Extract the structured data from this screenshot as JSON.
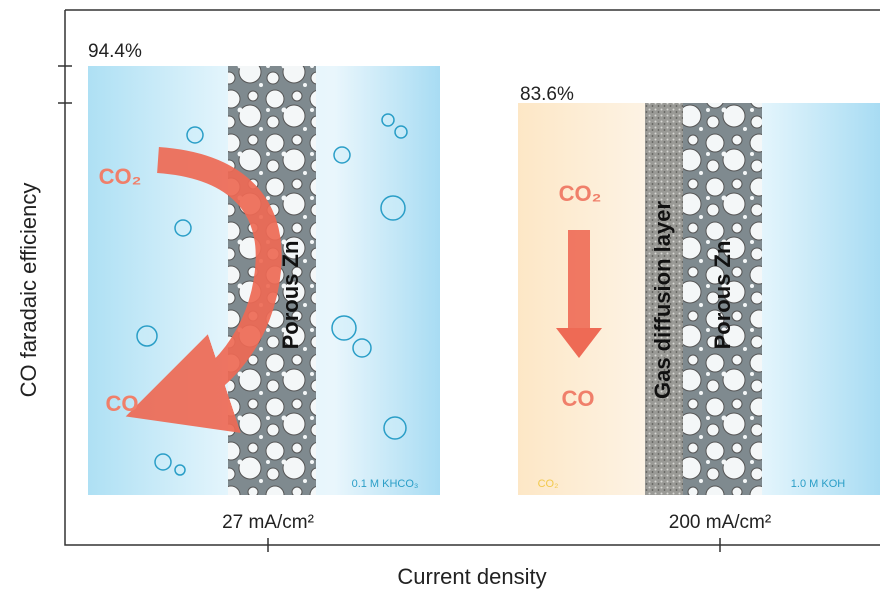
{
  "axes": {
    "y_label": "CO faradaic efficiency",
    "x_label": "Current density"
  },
  "panels": [
    {
      "efficiency": "94.4%",
      "current_density": "27 mA/cm²",
      "reactant": "CO₂",
      "product": "CO",
      "electrode": "Porous Zn",
      "electrolyte": "0.1 M KHCO₃"
    },
    {
      "efficiency": "83.6%",
      "current_density": "200 mA/cm²",
      "reactant": "CO₂",
      "product": "CO",
      "gdl": "Gas diffusion layer",
      "electrode": "Porous Zn",
      "gas": "CO₂",
      "electrolyte": "1.0 M KOH"
    }
  ]
}
